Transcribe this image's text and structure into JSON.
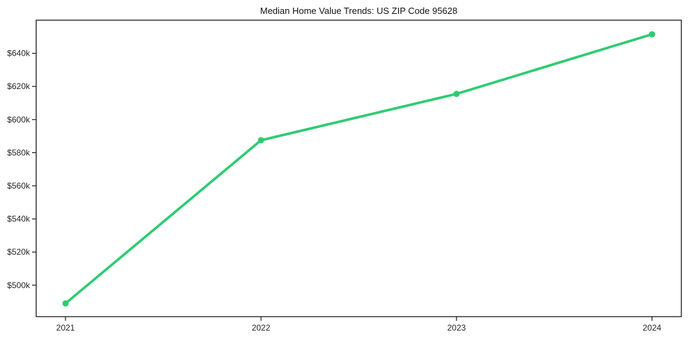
{
  "page": {
    "background_color": "#ffffff"
  },
  "chart_data": {
    "type": "line",
    "title": "Median Home Value Trends: US ZIP Code 95628",
    "x": [
      2021,
      2022,
      2023,
      2024
    ],
    "x_tick_labels": [
      "2021",
      "2022",
      "2023",
      "2024"
    ],
    "values": [
      489000,
      587500,
      615500,
      651500
    ],
    "y_ticks": [
      {
        "value": 500000,
        "label": "$500k"
      },
      {
        "value": 520000,
        "label": "$520k"
      },
      {
        "value": 540000,
        "label": "$540k"
      },
      {
        "value": 560000,
        "label": "$560k"
      },
      {
        "value": 580000,
        "label": "$580k"
      },
      {
        "value": 600000,
        "label": "$600k"
      },
      {
        "value": 620000,
        "label": "$620k"
      },
      {
        "value": 640000,
        "label": "$640k"
      }
    ],
    "xlim": [
      2020.85,
      2024.15
    ],
    "ylim": [
      481000,
      660000
    ],
    "xlabel": "",
    "ylabel": "",
    "grid": false,
    "legend": "none",
    "line_color": "#2ecc71",
    "axis_color": "#1a1a1a",
    "tick_label_color": "#262626",
    "marker": "circle"
  }
}
